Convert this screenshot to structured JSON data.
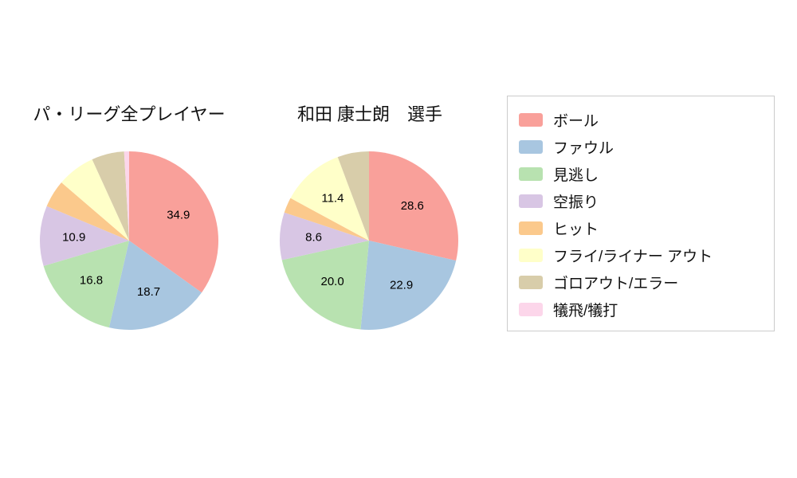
{
  "chart_data": [
    {
      "type": "pie",
      "title": "パ・リーグ全プレイヤー",
      "labels": [
        "ボール",
        "ファウル",
        "見逃し",
        "空振り",
        "ヒット",
        "フライ/ライナー アウト",
        "ゴロアウト/エラー",
        "犠飛/犠打"
      ],
      "values": [
        34.9,
        18.7,
        16.8,
        10.9,
        5.0,
        6.9,
        5.9,
        0.9
      ],
      "value_labels": [
        "34.9",
        "18.7",
        "16.8",
        "10.9",
        "",
        "",
        "",
        ""
      ],
      "start_angle_deg": 90,
      "direction": "clockwise",
      "legend_position": "right"
    },
    {
      "type": "pie",
      "title": "和田 康士朗　選手",
      "labels": [
        "ボール",
        "ファウル",
        "見逃し",
        "空振り",
        "ヒット",
        "フライ/ライナー アウト",
        "ゴロアウト/エラー",
        "犠飛/犠打"
      ],
      "values": [
        28.6,
        22.9,
        20.0,
        8.6,
        2.8,
        11.4,
        5.7,
        0.0
      ],
      "value_labels": [
        "28.6",
        "22.9",
        "20.0",
        "8.6",
        "",
        "11.4",
        "",
        ""
      ],
      "start_angle_deg": 90,
      "direction": "clockwise",
      "legend_position": "right"
    }
  ],
  "legend": {
    "items": [
      {
        "label": "ボール",
        "color": "#f9a09a"
      },
      {
        "label": "ファウル",
        "color": "#a8c6e0"
      },
      {
        "label": "見逃し",
        "color": "#b8e2b0"
      },
      {
        "label": "空振り",
        "color": "#d8c6e4"
      },
      {
        "label": "ヒット",
        "color": "#fbc98c"
      },
      {
        "label": "フライ/ライナー アウト",
        "color": "#ffffc9"
      },
      {
        "label": "ゴロアウト/エラー",
        "color": "#d8cdaa"
      },
      {
        "label": "犠飛/犠打",
        "color": "#fcd6ea"
      }
    ]
  }
}
